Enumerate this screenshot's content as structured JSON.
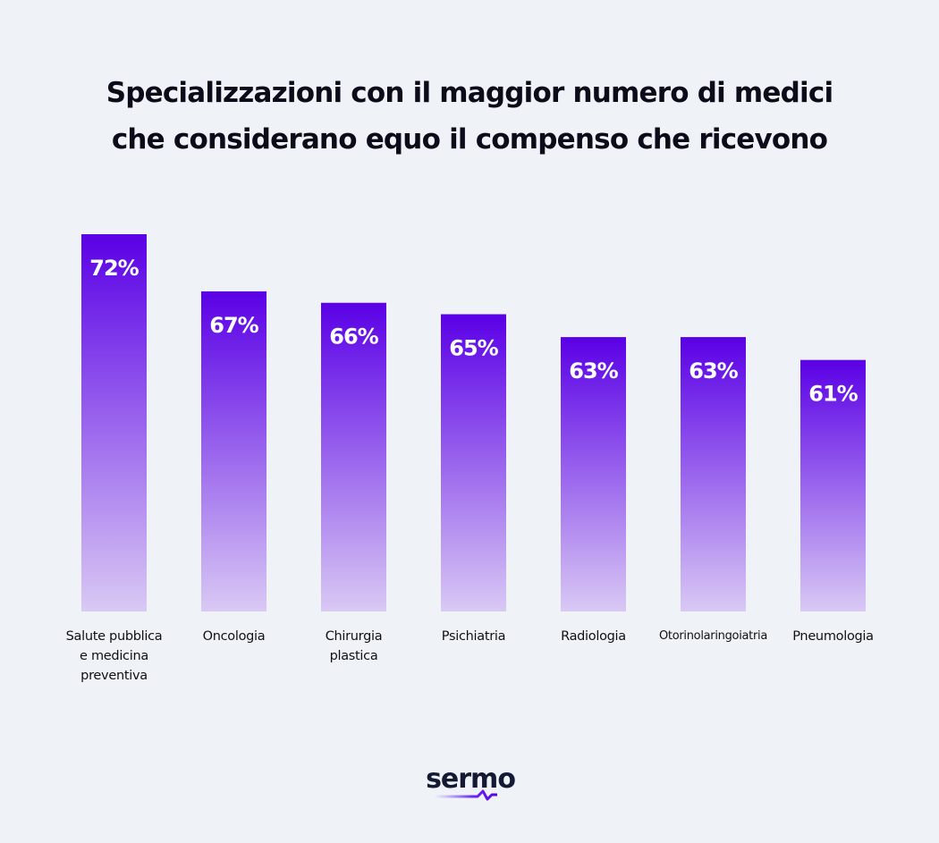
{
  "chart_data": {
    "type": "bar",
    "title": "Specializzazioni con il maggior numero di medici che considerano equo il compenso che ricevono",
    "title_lines": [
      "Specializzazioni con il maggior numero di medici",
      "che considerano equo il compenso che ricevono"
    ],
    "categories": [
      "Salute pubblica e medicina preventiva",
      "Oncologia",
      "Chirurgia plastica",
      "Psichiatria",
      "Radiologia",
      "Otorinolaringoiatria",
      "Pneumologia"
    ],
    "values": [
      72,
      67,
      66,
      65,
      63,
      63,
      61
    ],
    "data_labels": [
      "72%",
      "67%",
      "66%",
      "65%",
      "63%",
      "63%",
      "61%"
    ],
    "xlabel": "",
    "ylabel": "",
    "ylim": [
      39,
      72
    ],
    "grid": false,
    "colors": {
      "bar_top": "#5a00e6",
      "bar_bottom": "#d9c9f4",
      "background": "#eff2f7"
    }
  },
  "brand": {
    "logo_text": "sermo"
  }
}
